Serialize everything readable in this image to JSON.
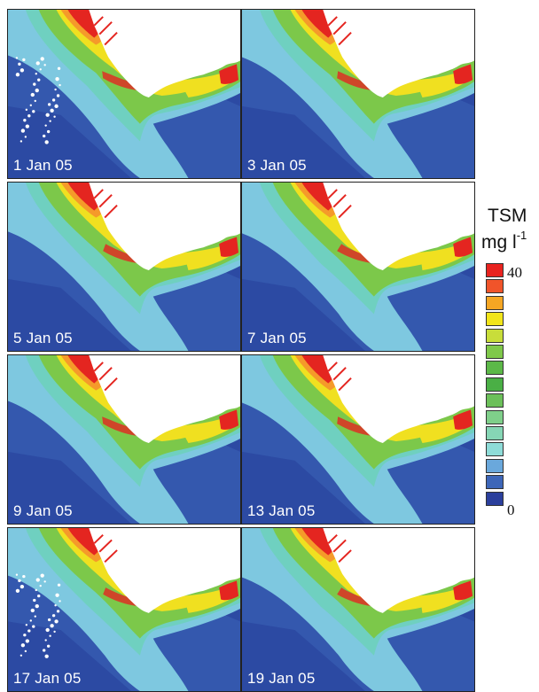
{
  "panels": [
    {
      "date": "1 Jan 05",
      "variant": 0
    },
    {
      "date": "3 Jan 05",
      "variant": 1
    },
    {
      "date": "5 Jan 05",
      "variant": 2
    },
    {
      "date": "7 Jan 05",
      "variant": 3
    },
    {
      "date": "9 Jan 05",
      "variant": 4
    },
    {
      "date": "13 Jan 05",
      "variant": 5
    },
    {
      "date": "17 Jan 05",
      "variant": 6
    },
    {
      "date": "19 Jan 05",
      "variant": 7
    }
  ],
  "legend": {
    "title": "TSM",
    "unit": "mg l",
    "unit_exponent": "-1",
    "max_label": "40",
    "min_label": "0",
    "colors": [
      "#e8231f",
      "#f0542a",
      "#f5a623",
      "#f2e51a",
      "#c8dd3a",
      "#7fc84a",
      "#5cb848",
      "#4aaf45",
      "#6cc05a",
      "#7fcf8a",
      "#86d6b5",
      "#8edcd8",
      "#6aa8dc",
      "#3d66b8",
      "#2b3f9c"
    ]
  },
  "palette": {
    "ocean": "#2c4aa3",
    "ocean_mid": "#3b62b6",
    "coastal": "#7ec8e0",
    "teal": "#6fd0c0",
    "green": "#7cc84a",
    "yellow": "#f0e020",
    "orange": "#f59a2a",
    "red": "#e42520",
    "land": "#ffffff"
  }
}
